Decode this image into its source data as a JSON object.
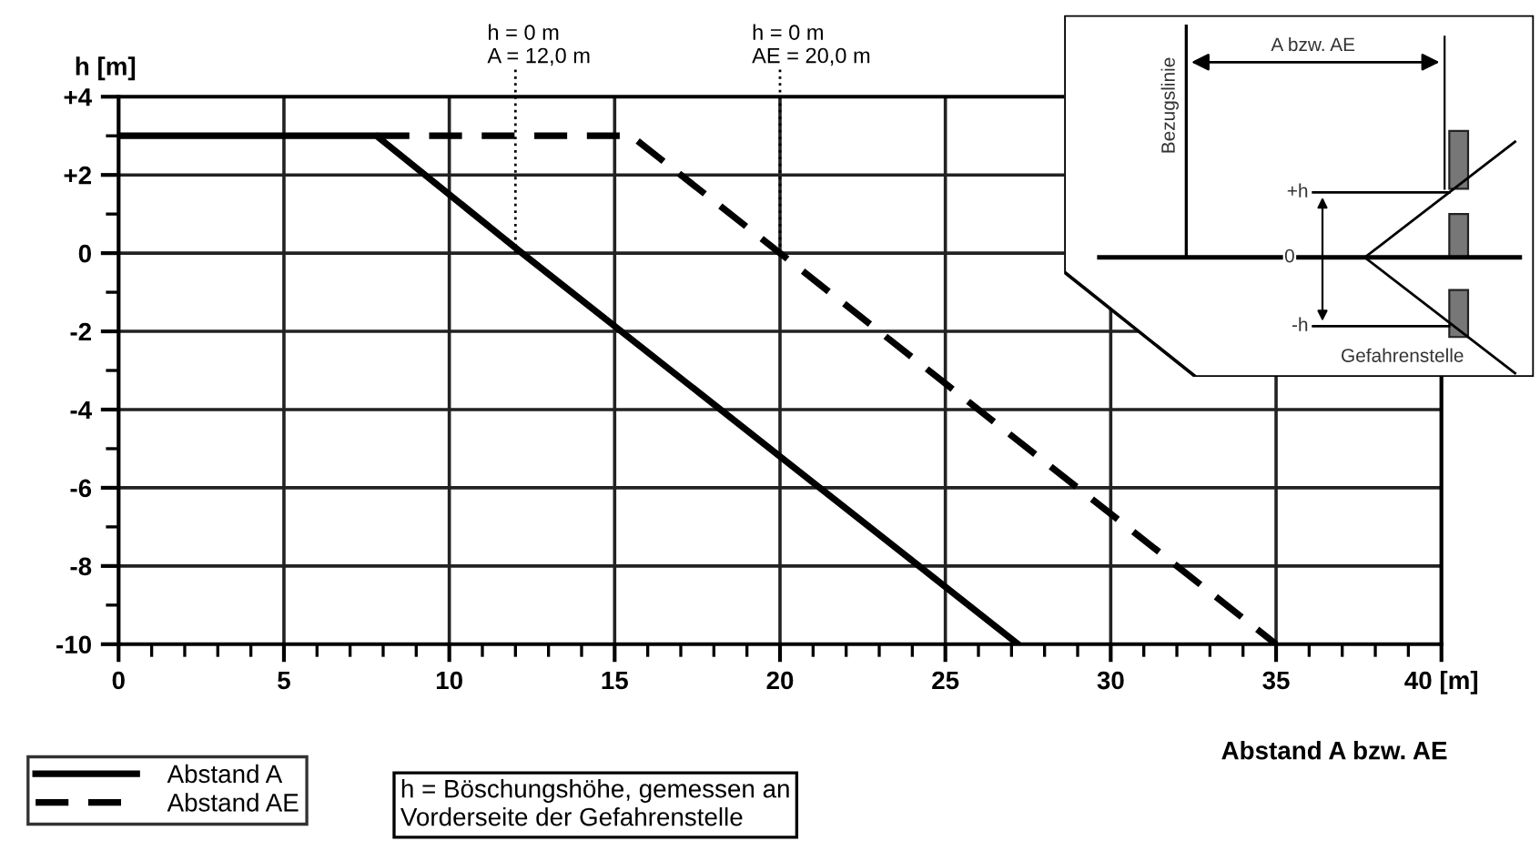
{
  "chart_data": {
    "type": "line",
    "xlabel": "Abstand A bzw. AE",
    "ylabel": "h [m]",
    "series": [
      {
        "name": "Abstand A",
        "color": "#000000",
        "line_style": "solid",
        "x": [
          0,
          7.8,
          12.2,
          27.2
        ],
        "values": [
          3,
          3,
          0,
          -10
        ]
      },
      {
        "name": "Abstand AE",
        "color": "#000000",
        "line_style": "dashed",
        "x": [
          7.8,
          15.5,
          20,
          35
        ],
        "values": [
          3,
          3,
          0,
          -10
        ]
      }
    ],
    "xlim": [
      0,
      40
    ],
    "ylim": [
      -10,
      4
    ],
    "xticks": [
      0,
      5,
      10,
      15,
      20,
      25,
      30,
      35,
      {
        "value": 40,
        "label": "40 [m]"
      },
      {
        "value": 1,
        "label": null
      },
      {
        "value": 2,
        "label": null
      },
      {
        "value": 3,
        "label": null
      },
      {
        "value": 4,
        "label": null
      },
      {
        "value": 6,
        "label": null
      },
      {
        "value": 7,
        "label": null
      },
      {
        "value": 8,
        "label": null
      },
      {
        "value": 9,
        "label": null
      },
      {
        "value": 11,
        "label": null
      },
      {
        "value": 12,
        "label": null
      },
      {
        "value": 13,
        "label": null
      },
      {
        "value": 14,
        "label": null
      },
      {
        "value": 16,
        "label": null
      },
      {
        "value": 17,
        "label": null
      },
      {
        "value": 18,
        "label": null
      },
      {
        "value": 19,
        "label": null
      },
      {
        "value": 21,
        "label": null
      },
      {
        "value": 22,
        "label": null
      },
      {
        "value": 23,
        "label": null
      },
      {
        "value": 24,
        "label": null
      },
      {
        "value": 26,
        "label": null
      },
      {
        "value": 27,
        "label": null
      },
      {
        "value": 28,
        "label": null
      },
      {
        "value": 29,
        "label": null
      },
      {
        "value": 31,
        "label": null
      },
      {
        "value": 32,
        "label": null
      },
      {
        "value": 33,
        "label": null
      },
      {
        "value": 34,
        "label": null
      },
      {
        "value": 36,
        "label": null
      },
      {
        "value": 37,
        "label": null
      },
      {
        "value": 38,
        "label": null
      },
      {
        "value": 39,
        "label": null
      }
    ],
    "yticks": [
      {
        "value": 4,
        "label": "+4"
      },
      {
        "value": 2,
        "label": "+2"
      },
      0,
      -2,
      -4,
      -6,
      -8,
      -10,
      {
        "value": 3,
        "label": null
      },
      {
        "value": 1,
        "label": null
      },
      {
        "value": -1,
        "label": null
      },
      {
        "value": -3,
        "label": null
      },
      {
        "value": -5,
        "label": null
      },
      {
        "value": -7,
        "label": null
      },
      {
        "value": -9,
        "label": null
      }
    ],
    "ref_lines": [
      {
        "axis": "x",
        "value": 12,
        "label": "h = 0 m\nA = 12,0 m",
        "line_style": "dotted"
      },
      {
        "axis": "x",
        "value": 20,
        "label": "h = 0 m\nAE = 20,0 m",
        "line_style": "dotted"
      }
    ],
    "grid": true,
    "legend": "bottom left",
    "marker": "none",
    "annotations": [
      "h = Böschungshöhe, gemessen an\nVorderseite der Gefahrenstelle",
      "Bezugslinie",
      "A bzw. AE",
      "+h",
      "0",
      "-h",
      "Gefahrenstelle"
    ]
  }
}
